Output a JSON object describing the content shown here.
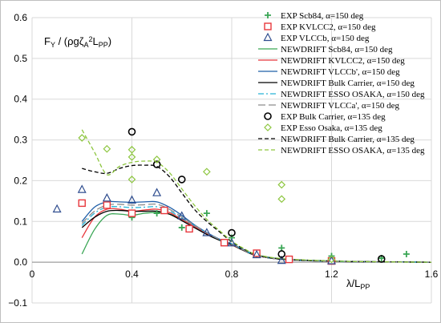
{
  "chart_data": {
    "type": "scatter",
    "xlabel": "λ/L",
    "xlabel_sub": "PP",
    "ylabel_parts": [
      "F",
      "Y",
      " / (ρgζ",
      "A",
      "2",
      "L",
      "PP",
      ")"
    ],
    "xlim": [
      0,
      1.6
    ],
    "ylim": [
      -0.1,
      0.6
    ],
    "xticks": [
      {
        "v": 0,
        "label": "0"
      },
      {
        "v": 0.4,
        "label": "0.4"
      },
      {
        "v": 0.8,
        "label": "0.8"
      },
      {
        "v": 1.2,
        "label": "1.2"
      },
      {
        "v": 1.6,
        "label": "1.6"
      }
    ],
    "yticks": [
      {
        "v": -0.1,
        "label": "−0.1"
      },
      {
        "v": 0,
        "label": "0.0"
      },
      {
        "v": 0.1,
        "label": "0.1"
      },
      {
        "v": 0.2,
        "label": "0.2"
      },
      {
        "v": 0.3,
        "label": "0.3"
      },
      {
        "v": 0.4,
        "label": "0.4"
      },
      {
        "v": 0.5,
        "label": "0.5"
      },
      {
        "v": 0.6,
        "label": "0.6"
      }
    ],
    "grid": true,
    "legend_position": "top-right",
    "series": [
      {
        "name": "EXP Scb84, α=150 deg",
        "kind": "marker",
        "marker": "plus",
        "color": "#3aa655",
        "points": [
          [
            0.4,
            0.11
          ],
          [
            0.5,
            0.12
          ],
          [
            0.6,
            0.085
          ],
          [
            0.7,
            0.12
          ],
          [
            0.8,
            0.06
          ],
          [
            0.9,
            0.02
          ],
          [
            1.0,
            0.035
          ],
          [
            1.2,
            0.015
          ],
          [
            1.4,
            0.01
          ],
          [
            1.5,
            0.02
          ]
        ]
      },
      {
        "name": "EXP KVLCC2, α=150 deg",
        "kind": "marker",
        "marker": "square",
        "color": "#e8383d",
        "points": [
          [
            0.2,
            0.145
          ],
          [
            0.3,
            0.14
          ],
          [
            0.4,
            0.12
          ],
          [
            0.53,
            0.127
          ],
          [
            0.63,
            0.082
          ],
          [
            0.77,
            0.048
          ],
          [
            0.9,
            0.022
          ],
          [
            1.03,
            0.007
          ],
          [
            1.2,
            0.003
          ]
        ]
      },
      {
        "name": "EXP VLCCb, α=150 deg",
        "kind": "marker",
        "marker": "triangle",
        "color": "#2f4d8f",
        "points": [
          [
            0.1,
            0.13
          ],
          [
            0.2,
            0.178
          ],
          [
            0.3,
            0.157
          ],
          [
            0.4,
            0.152
          ],
          [
            0.5,
            0.17
          ],
          [
            0.6,
            0.113
          ],
          [
            0.7,
            0.072
          ],
          [
            0.8,
            0.047
          ],
          [
            0.9,
            0.018
          ],
          [
            1.0,
            0.004
          ],
          [
            1.2,
            0.003
          ]
        ]
      },
      {
        "name": "NEWDRIFT Scb84, α=150 deg",
        "kind": "line",
        "color": "#3aa655",
        "dash": "",
        "points": [
          [
            0.2,
            0.02
          ],
          [
            0.25,
            0.08
          ],
          [
            0.3,
            0.115
          ],
          [
            0.35,
            0.118
          ],
          [
            0.4,
            0.115
          ],
          [
            0.45,
            0.12
          ],
          [
            0.5,
            0.122
          ],
          [
            0.55,
            0.118
          ],
          [
            0.6,
            0.105
          ],
          [
            0.65,
            0.088
          ],
          [
            0.7,
            0.07
          ],
          [
            0.75,
            0.055
          ],
          [
            0.8,
            0.045
          ],
          [
            0.85,
            0.03
          ],
          [
            0.9,
            0.018
          ],
          [
            1.0,
            0.008
          ],
          [
            1.2,
            0.003
          ],
          [
            1.4,
            0.001
          ],
          [
            1.6,
            0.0
          ]
        ]
      },
      {
        "name": "NEWDRIFT KVLCC2, α=150 deg",
        "kind": "line",
        "color": "#e8383d",
        "dash": "",
        "points": [
          [
            0.2,
            0.06
          ],
          [
            0.25,
            0.11
          ],
          [
            0.3,
            0.13
          ],
          [
            0.35,
            0.13
          ],
          [
            0.4,
            0.125
          ],
          [
            0.45,
            0.128
          ],
          [
            0.5,
            0.13
          ],
          [
            0.55,
            0.122
          ],
          [
            0.6,
            0.105
          ],
          [
            0.65,
            0.088
          ],
          [
            0.7,
            0.07
          ],
          [
            0.75,
            0.055
          ],
          [
            0.8,
            0.042
          ],
          [
            0.85,
            0.028
          ],
          [
            0.9,
            0.016
          ],
          [
            1.0,
            0.007
          ],
          [
            1.2,
            0.002
          ],
          [
            1.4,
            0.001
          ],
          [
            1.6,
            0.0
          ]
        ]
      },
      {
        "name": "NEWDRIFT VLCCb', α=150 deg",
        "kind": "line",
        "color": "#1f5fa8",
        "dash": "",
        "points": [
          [
            0.2,
            0.1
          ],
          [
            0.25,
            0.135
          ],
          [
            0.3,
            0.148
          ],
          [
            0.35,
            0.148
          ],
          [
            0.4,
            0.147
          ],
          [
            0.45,
            0.148
          ],
          [
            0.5,
            0.148
          ],
          [
            0.55,
            0.135
          ],
          [
            0.6,
            0.115
          ],
          [
            0.65,
            0.092
          ],
          [
            0.7,
            0.073
          ],
          [
            0.75,
            0.057
          ],
          [
            0.8,
            0.045
          ],
          [
            0.85,
            0.03
          ],
          [
            0.9,
            0.017
          ],
          [
            1.0,
            0.007
          ],
          [
            1.2,
            0.002
          ],
          [
            1.4,
            0.001
          ],
          [
            1.6,
            0.0
          ]
        ]
      },
      {
        "name": "NEWDRIFT Bulk Carrier, α=150 deg",
        "kind": "line",
        "color": "#000000",
        "dash": "",
        "points": [
          [
            0.2,
            0.085
          ],
          [
            0.25,
            0.11
          ],
          [
            0.3,
            0.125
          ],
          [
            0.35,
            0.127
          ],
          [
            0.4,
            0.125
          ],
          [
            0.45,
            0.125
          ],
          [
            0.5,
            0.125
          ],
          [
            0.55,
            0.118
          ],
          [
            0.6,
            0.102
          ],
          [
            0.65,
            0.085
          ],
          [
            0.7,
            0.068
          ],
          [
            0.75,
            0.054
          ],
          [
            0.8,
            0.043
          ],
          [
            0.85,
            0.028
          ],
          [
            0.9,
            0.016
          ],
          [
            1.0,
            0.007
          ],
          [
            1.2,
            0.002
          ],
          [
            1.4,
            0.001
          ],
          [
            1.6,
            0.0
          ]
        ]
      },
      {
        "name": "NEWDRIFT ESSO OSAKA, α=150 deg",
        "kind": "line",
        "color": "#28b4d6",
        "dash": "7 3 2 3",
        "points": [
          [
            0.2,
            0.09
          ],
          [
            0.25,
            0.12
          ],
          [
            0.3,
            0.135
          ],
          [
            0.35,
            0.136
          ],
          [
            0.4,
            0.134
          ],
          [
            0.45,
            0.135
          ],
          [
            0.5,
            0.136
          ],
          [
            0.55,
            0.126
          ],
          [
            0.6,
            0.108
          ],
          [
            0.65,
            0.09
          ],
          [
            0.7,
            0.072
          ],
          [
            0.75,
            0.056
          ],
          [
            0.8,
            0.044
          ],
          [
            0.85,
            0.029
          ],
          [
            0.9,
            0.017
          ],
          [
            1.0,
            0.007
          ],
          [
            1.2,
            0.002
          ],
          [
            1.4,
            0.001
          ],
          [
            1.6,
            0.0
          ]
        ]
      },
      {
        "name": "NEWDRIFT VLCCa', α=150 deg",
        "kind": "line",
        "color": "#8c8c8c",
        "dash": "9 4",
        "points": [
          [
            0.2,
            0.095
          ],
          [
            0.25,
            0.125
          ],
          [
            0.3,
            0.14
          ],
          [
            0.35,
            0.142
          ],
          [
            0.4,
            0.14
          ],
          [
            0.45,
            0.141
          ],
          [
            0.5,
            0.142
          ],
          [
            0.55,
            0.13
          ],
          [
            0.6,
            0.111
          ],
          [
            0.65,
            0.091
          ],
          [
            0.7,
            0.072
          ],
          [
            0.75,
            0.056
          ],
          [
            0.8,
            0.044
          ],
          [
            0.85,
            0.029
          ],
          [
            0.9,
            0.017
          ],
          [
            1.0,
            0.007
          ],
          [
            1.2,
            0.002
          ],
          [
            1.4,
            0.001
          ],
          [
            1.6,
            0.0
          ]
        ]
      },
      {
        "name": "EXP Bulk Carrier, α=135 deg",
        "kind": "marker",
        "marker": "circle",
        "color": "#000000",
        "points": [
          [
            0.4,
            0.32
          ],
          [
            0.5,
            0.24
          ],
          [
            0.6,
            0.203
          ],
          [
            0.8,
            0.072
          ],
          [
            1.0,
            0.02
          ],
          [
            1.4,
            0.008
          ]
        ]
      },
      {
        "name": "EXP Esso Osaka, α=135 deg",
        "kind": "marker",
        "marker": "diamond",
        "color": "#8dc63f",
        "points": [
          [
            0.2,
            0.305
          ],
          [
            0.3,
            0.278
          ],
          [
            0.4,
            0.276
          ],
          [
            0.4,
            0.258
          ],
          [
            0.4,
            0.203
          ],
          [
            0.5,
            0.252
          ],
          [
            0.7,
            0.222
          ],
          [
            1.0,
            0.19
          ],
          [
            1.0,
            0.155
          ],
          [
            1.2,
            0.007
          ]
        ]
      },
      {
        "name": "NEWDRIFT Bulk Carrier, α=135 deg",
        "kind": "line",
        "color": "#000000",
        "dash": "5 3",
        "points": [
          [
            0.2,
            0.23
          ],
          [
            0.25,
            0.222
          ],
          [
            0.3,
            0.218
          ],
          [
            0.35,
            0.23
          ],
          [
            0.4,
            0.237
          ],
          [
            0.45,
            0.238
          ],
          [
            0.5,
            0.235
          ],
          [
            0.55,
            0.21
          ],
          [
            0.6,
            0.17
          ],
          [
            0.65,
            0.13
          ],
          [
            0.7,
            0.1
          ],
          [
            0.75,
            0.075
          ],
          [
            0.8,
            0.05
          ],
          [
            0.85,
            0.032
          ],
          [
            0.9,
            0.018
          ],
          [
            1.0,
            0.008
          ],
          [
            1.2,
            0.003
          ],
          [
            1.4,
            0.001
          ],
          [
            1.6,
            0.0
          ]
        ]
      },
      {
        "name": "NEWDRIFT ESSO OSAKA, α=135 deg",
        "kind": "line",
        "color": "#8dc63f",
        "dash": "5 3",
        "points": [
          [
            0.2,
            0.325
          ],
          [
            0.25,
            0.27
          ],
          [
            0.3,
            0.215
          ],
          [
            0.35,
            0.235
          ],
          [
            0.4,
            0.245
          ],
          [
            0.45,
            0.248
          ],
          [
            0.5,
            0.245
          ],
          [
            0.55,
            0.22
          ],
          [
            0.6,
            0.18
          ],
          [
            0.65,
            0.14
          ],
          [
            0.7,
            0.105
          ],
          [
            0.75,
            0.078
          ],
          [
            0.8,
            0.052
          ],
          [
            0.85,
            0.033
          ],
          [
            0.9,
            0.019
          ],
          [
            1.0,
            0.009
          ],
          [
            1.2,
            0.003
          ],
          [
            1.4,
            0.001
          ],
          [
            1.6,
            0.0
          ]
        ]
      }
    ]
  }
}
